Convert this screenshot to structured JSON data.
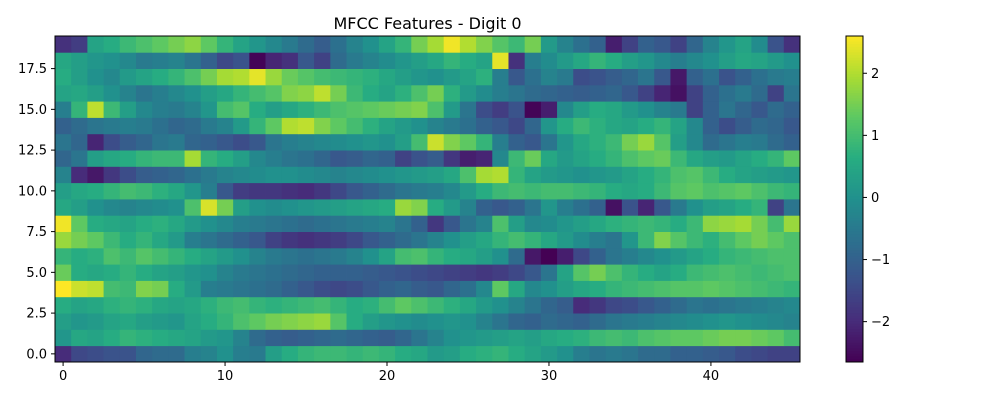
{
  "chart_data": {
    "type": "heatmap",
    "title": "MFCC Features - Digit 0",
    "xlabel": "",
    "ylabel": "",
    "n_cols": 46,
    "n_rows": 20,
    "xlim": [
      -0.5,
      45.5
    ],
    "ylim": [
      -0.5,
      19.5
    ],
    "x_ticks": [
      0,
      10,
      20,
      30,
      40
    ],
    "x_tick_labels": [
      "0",
      "10",
      "20",
      "30",
      "40"
    ],
    "y_ticks": [
      0.0,
      2.5,
      5.0,
      7.5,
      10.0,
      12.5,
      15.0,
      17.5
    ],
    "y_tick_labels": [
      "0.0",
      "2.5",
      "5.0",
      "7.5",
      "10.0",
      "12.5",
      "15.0",
      "17.5"
    ],
    "colorbar": {
      "vmin": -2.65,
      "vmax": 2.6,
      "ticks": [
        -2,
        -1,
        0,
        1,
        2
      ],
      "tick_labels": [
        "−2",
        "−1",
        "0",
        "1",
        "2"
      ],
      "colormap": "viridis"
    },
    "values": [
      [
        -2.0,
        -1.5,
        -1.4,
        -1.3,
        -1.3,
        -0.9,
        -0.8,
        -0.8,
        -0.4,
        -0.3,
        0.0,
        -0.4,
        -0.5,
        0.3,
        0.6,
        0.8,
        0.9,
        0.9,
        0.8,
        0.9,
        0.8,
        0.6,
        0.5,
        0.2,
        0.3,
        0.6,
        0.7,
        0.8,
        0.6,
        0.4,
        0.2,
        0.0,
        -0.4,
        -0.6,
        -0.5,
        -0.6,
        -0.8,
        -0.8,
        -1.0,
        -1.0,
        -1.1,
        -1.2,
        -1.4,
        -1.5,
        -1.6,
        -1.6
      ],
      [
        0.1,
        0.5,
        0.4,
        0.6,
        0.8,
        0.7,
        0.6,
        0.5,
        0.4,
        0.2,
        0.1,
        -0.3,
        -0.8,
        -1.0,
        -1.1,
        -1.0,
        -0.9,
        -0.8,
        -0.9,
        -1.0,
        -1.1,
        -0.9,
        -0.6,
        -0.3,
        0.0,
        0.1,
        0.2,
        0.3,
        0.4,
        0.3,
        0.5,
        0.6,
        0.7,
        0.9,
        1.0,
        0.9,
        1.1,
        1.2,
        1.3,
        1.3,
        1.4,
        1.5,
        1.5,
        1.4,
        1.3,
        1.0
      ],
      [
        0.3,
        0.1,
        0.2,
        0.4,
        0.5,
        0.3,
        0.2,
        0.1,
        0.4,
        0.6,
        0.8,
        1.1,
        1.3,
        1.5,
        1.6,
        1.7,
        1.8,
        1.2,
        0.6,
        0.3,
        0.1,
        0.0,
        -0.1,
        0.0,
        0.1,
        0.0,
        -0.3,
        -0.6,
        -0.9,
        -1.0,
        -0.8,
        -0.9,
        -1.0,
        -0.8,
        -0.6,
        -0.5,
        -0.4,
        -0.3,
        -0.2,
        -0.1,
        0.0,
        0.1,
        0.0,
        -0.1,
        -0.2,
        -0.3
      ],
      [
        0.6,
        0.4,
        0.5,
        0.7,
        0.8,
        0.7,
        0.5,
        0.4,
        0.5,
        0.7,
        0.9,
        1.0,
        0.8,
        0.7,
        0.8,
        0.9,
        1.0,
        0.8,
        0.6,
        0.7,
        1.0,
        1.3,
        1.1,
        0.9,
        0.7,
        0.5,
        0.2,
        0.0,
        -0.3,
        -0.6,
        -0.9,
        -1.1,
        -2.0,
        -1.8,
        -1.5,
        -1.4,
        -1.2,
        -1.0,
        -0.8,
        -0.6,
        -0.7,
        -0.6,
        -0.5,
        -0.4,
        -0.3,
        -0.2
      ],
      [
        2.6,
        2.2,
        2.1,
        1.0,
        0.9,
        1.6,
        1.5,
        0.6,
        0.2,
        -0.4,
        -0.5,
        -0.6,
        -0.7,
        -0.8,
        -1.0,
        -1.2,
        -1.4,
        -1.5,
        -1.4,
        -1.2,
        -1.0,
        -0.9,
        -1.1,
        -1.2,
        -0.9,
        -0.7,
        -0.2,
        1.3,
        0.5,
        -0.2,
        0.0,
        0.3,
        0.5,
        0.6,
        0.8,
        0.9,
        1.0,
        1.1,
        1.2,
        1.2,
        1.3,
        1.2,
        1.1,
        1.0,
        0.9,
        0.8
      ],
      [
        1.4,
        0.6,
        0.5,
        0.6,
        0.8,
        0.6,
        0.4,
        0.3,
        0.1,
        0.0,
        -0.3,
        -0.5,
        -0.6,
        -0.7,
        -0.8,
        -0.9,
        -1.0,
        -1.0,
        -1.0,
        -1.1,
        -1.2,
        -1.3,
        -1.4,
        -1.5,
        -1.6,
        -1.7,
        -1.8,
        -1.7,
        -1.5,
        -1.2,
        -0.6,
        0.4,
        1.2,
        1.5,
        1.1,
        0.8,
        0.6,
        0.4,
        0.6,
        0.9,
        1.0,
        1.1,
        1.0,
        0.9,
        1.0,
        1.1
      ],
      [
        0.8,
        0.6,
        0.7,
        1.1,
        0.9,
        1.2,
        1.0,
        0.8,
        0.6,
        0.4,
        0.2,
        0.0,
        -0.3,
        -0.5,
        -0.6,
        -0.7,
        -0.6,
        -0.5,
        -0.3,
        0.0,
        0.4,
        1.0,
        1.1,
        0.8,
        0.6,
        0.5,
        0.3,
        0.0,
        -0.8,
        -2.3,
        -2.7,
        -2.2,
        -1.5,
        -1.0,
        -0.6,
        -0.4,
        -0.2,
        0.0,
        0.2,
        0.4,
        0.6,
        0.8,
        0.9,
        1.0,
        1.1,
        1.1
      ],
      [
        1.8,
        1.5,
        1.3,
        0.9,
        0.6,
        0.8,
        0.5,
        0.2,
        -0.4,
        -0.6,
        -0.8,
        -1.0,
        -1.2,
        -1.6,
        -1.8,
        -1.9,
        -1.8,
        -1.7,
        -1.5,
        -1.2,
        -1.0,
        -0.8,
        -0.6,
        -0.3,
        0.0,
        0.3,
        0.5,
        0.8,
        1.0,
        0.8,
        0.5,
        0.2,
        -0.1,
        -0.4,
        -0.6,
        0.1,
        0.9,
        1.6,
        1.2,
        0.9,
        0.7,
        1.0,
        1.3,
        1.5,
        1.3,
        1.1
      ],
      [
        2.5,
        1.3,
        0.6,
        0.5,
        0.4,
        0.6,
        0.7,
        0.5,
        0.2,
        0.0,
        -0.2,
        -0.4,
        -0.5,
        -0.6,
        -0.7,
        -0.8,
        -0.7,
        -0.6,
        -0.5,
        -0.4,
        -0.3,
        -0.6,
        -1.0,
        -1.8,
        -1.2,
        -0.6,
        -0.3,
        1.1,
        0.3,
        -0.2,
        -0.1,
        0.1,
        0.3,
        0.5,
        0.7,
        0.8,
        0.9,
        0.8,
        0.6,
        0.9,
        1.7,
        1.8,
        1.9,
        1.5,
        1.0,
        1.8
      ],
      [
        0.5,
        0.3,
        0.0,
        -0.2,
        -0.3,
        -0.2,
        -0.1,
        0.0,
        1.1,
        2.3,
        1.5,
        0.3,
        0.0,
        -0.1,
        0.0,
        0.1,
        0.2,
        0.3,
        0.4,
        0.5,
        0.6,
        1.8,
        1.6,
        0.6,
        0.2,
        -0.3,
        -1.0,
        -1.2,
        -1.0,
        -0.6,
        0.1,
        -0.4,
        -0.7,
        -1.0,
        -2.4,
        -1.3,
        -2.1,
        -1.2,
        -0.5,
        0.0,
        0.3,
        0.4,
        0.6,
        0.8,
        -1.6,
        -0.6
      ],
      [
        0.3,
        0.5,
        0.6,
        0.8,
        1.0,
        0.9,
        0.7,
        0.5,
        0.1,
        -0.4,
        -1.2,
        -1.7,
        -1.8,
        -1.8,
        -1.9,
        -2.0,
        -1.8,
        -1.5,
        -1.2,
        -1.0,
        -0.8,
        -0.6,
        -0.5,
        -0.4,
        -0.2,
        0.2,
        0.6,
        0.9,
        1.0,
        0.9,
        1.0,
        1.0,
        0.9,
        0.8,
        0.6,
        0.5,
        0.6,
        0.9,
        1.2,
        1.3,
        1.1,
        1.2,
        1.3,
        1.1,
        0.9,
        0.8
      ],
      [
        -0.3,
        -2.0,
        -2.3,
        -1.8,
        -1.4,
        -1.1,
        -1.0,
        -0.9,
        -0.7,
        -0.5,
        -0.3,
        -0.2,
        -0.1,
        0.0,
        0.0,
        -0.1,
        -0.2,
        -0.3,
        -0.2,
        -0.1,
        0.0,
        0.1,
        0.2,
        0.3,
        0.5,
        1.1,
        1.9,
        2.0,
        0.8,
        0.4,
        0.2,
        0.1,
        0.0,
        0.1,
        0.2,
        0.4,
        0.6,
        0.8,
        1.1,
        1.2,
        0.9,
        0.6,
        0.4,
        0.3,
        0.2,
        0.1
      ],
      [
        -0.9,
        -0.6,
        0.3,
        0.5,
        0.6,
        0.8,
        0.9,
        0.9,
        1.9,
        0.8,
        0.6,
        0.3,
        -0.2,
        -0.4,
        -0.6,
        -0.7,
        -0.9,
        -1.2,
        -1.1,
        -0.9,
        -1.0,
        -1.6,
        -1.3,
        -1.1,
        -1.8,
        -2.2,
        -2.1,
        -0.2,
        0.9,
        1.4,
        0.5,
        0.2,
        0.4,
        0.6,
        0.8,
        1.1,
        1.3,
        1.4,
        0.9,
        0.5,
        0.3,
        0.2,
        0.4,
        0.6,
        0.8,
        1.3
      ],
      [
        -0.6,
        -0.9,
        -2.1,
        -1.4,
        -1.1,
        -0.9,
        -0.6,
        -0.5,
        -0.9,
        -1.0,
        -1.2,
        -1.4,
        -1.2,
        -0.6,
        -0.4,
        -0.3,
        -0.2,
        -0.1,
        0.0,
        0.1,
        0.0,
        0.3,
        1.0,
        2.2,
        1.6,
        1.3,
        0.8,
        -0.4,
        -1.0,
        -1.2,
        -0.6,
        0.1,
        0.5,
        0.7,
        0.9,
        1.5,
        1.8,
        1.2,
        0.3,
        -0.2,
        -0.8,
        -0.6,
        -0.4,
        -0.5,
        -0.8,
        -1.0
      ],
      [
        -1.0,
        -0.8,
        -0.6,
        -0.5,
        -0.4,
        -0.5,
        -0.7,
        -0.9,
        -0.8,
        -0.5,
        -0.3,
        0.2,
        0.8,
        1.3,
        2.0,
        2.1,
        1.6,
        1.3,
        1.0,
        0.7,
        0.4,
        0.2,
        0.0,
        -0.3,
        -0.5,
        -0.7,
        -1.0,
        -1.2,
        -1.5,
        -0.9,
        0.1,
        0.6,
        0.9,
        0.7,
        0.5,
        0.4,
        0.6,
        0.8,
        0.4,
        -0.2,
        -1.0,
        -1.4,
        -1.1,
        -0.8,
        -0.9,
        -1.2
      ],
      [
        -0.4,
        0.8,
        2.1,
        0.9,
        0.3,
        -0.2,
        -0.4,
        -0.5,
        -0.3,
        0.1,
        1.0,
        1.2,
        0.6,
        0.3,
        0.5,
        0.7,
        0.9,
        1.1,
        1.2,
        1.3,
        1.4,
        1.5,
        1.6,
        1.1,
        0.2,
        -0.6,
        -1.4,
        -1.7,
        -1.3,
        -2.6,
        -2.2,
        -0.2,
        0.3,
        0.6,
        0.5,
        0.2,
        0.0,
        -0.3,
        -0.5,
        -1.6,
        -1.0,
        -0.6,
        -0.9,
        -1.2,
        -0.8,
        -1.0
      ],
      [
        0.4,
        0.5,
        0.3,
        0.0,
        -0.3,
        -0.6,
        -0.4,
        -0.2,
        0.0,
        0.3,
        0.5,
        0.8,
        1.0,
        1.2,
        1.6,
        1.7,
        2.1,
        1.5,
        0.9,
        0.6,
        0.4,
        0.7,
        1.1,
        1.5,
        0.7,
        0.2,
        -0.1,
        -0.4,
        -0.6,
        -0.8,
        -0.9,
        -1.0,
        -1.1,
        -1.0,
        -0.9,
        -1.2,
        -1.6,
        -2.1,
        -2.4,
        -1.6,
        -1.0,
        -0.7,
        -0.5,
        -0.8,
        -1.6,
        -0.6
      ],
      [
        0.6,
        0.3,
        0.0,
        -0.2,
        0.2,
        0.4,
        0.6,
        0.8,
        1.1,
        1.5,
        1.9,
        2.0,
        2.4,
        1.8,
        1.4,
        1.2,
        1.0,
        0.9,
        0.8,
        0.7,
        0.5,
        0.3,
        0.1,
        0.0,
        0.2,
        0.4,
        0.7,
        -0.4,
        -1.2,
        -0.7,
        -0.3,
        -0.5,
        -1.4,
        -1.3,
        -1.1,
        -0.9,
        -0.6,
        -1.2,
        -2.3,
        -1.0,
        -0.7,
        -1.3,
        -1.0,
        -0.7,
        -0.5,
        -0.4
      ],
      [
        0.5,
        0.3,
        0.1,
        0.0,
        -0.2,
        -0.5,
        -0.4,
        -0.3,
        -0.6,
        -1.0,
        -1.5,
        -1.3,
        -2.6,
        -2.1,
        -1.9,
        -1.2,
        -1.6,
        -0.8,
        -0.5,
        -0.3,
        -0.1,
        0.1,
        0.3,
        0.5,
        0.8,
        0.6,
        0.4,
        2.4,
        -1.9,
        -0.4,
        -0.1,
        0.2,
        0.5,
        0.8,
        0.6,
        0.3,
        0.1,
        -0.2,
        -0.4,
        -0.2,
        0.0,
        0.3,
        0.5,
        0.4,
        0.2,
        0.0
      ],
      [
        -1.9,
        -1.7,
        0.4,
        0.6,
        0.9,
        1.1,
        1.3,
        1.5,
        1.7,
        1.3,
        0.8,
        0.4,
        0.1,
        -0.2,
        -0.5,
        -0.8,
        -1.1,
        -0.7,
        -0.3,
        0.0,
        0.4,
        0.8,
        1.5,
        1.9,
        2.5,
        2.0,
        1.6,
        1.2,
        0.9,
        1.5,
        0.2,
        -0.3,
        -0.7,
        -1.0,
        -2.2,
        -1.6,
        -1.0,
        -1.2,
        -1.6,
        -0.9,
        -0.3,
        0.1,
        0.4,
        -0.1,
        -1.3,
        -1.9
      ]
    ]
  }
}
